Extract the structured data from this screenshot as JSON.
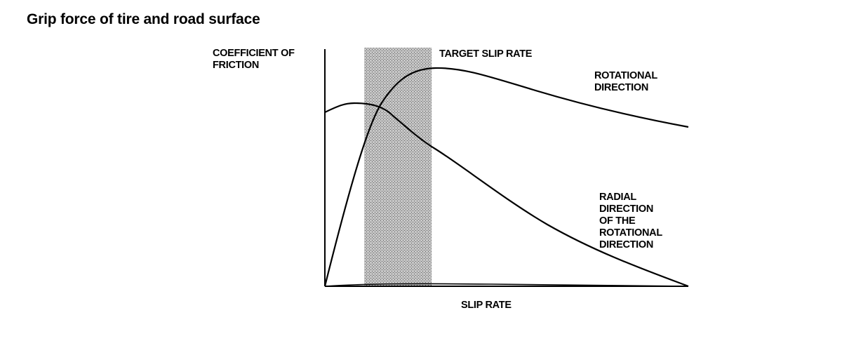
{
  "title": "Grip force of tire and road surface",
  "chart_data": {
    "type": "line",
    "ylabel": "COEFFICIENT OF\nFRICTION",
    "xlabel": "SLIP RATE",
    "band_label": "TARGET SLIP RATE",
    "series": [
      {
        "name": "ROTATIONAL\nDIRECTION"
      },
      {
        "name": "RADIAL\nDIRECTION\nOF THE\nROTATIONAL\nDIRECTION"
      }
    ],
    "grid": false,
    "shaded_band": true
  }
}
